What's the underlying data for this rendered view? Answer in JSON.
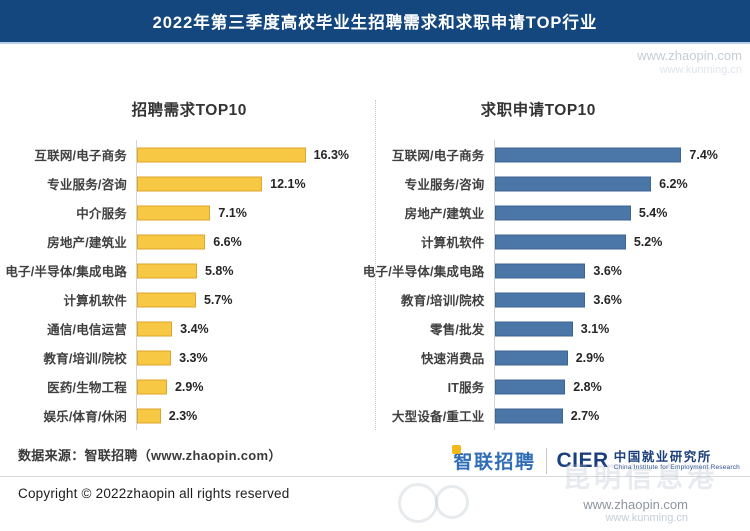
{
  "banner": {
    "title": "2022年第三季度高校毕业生招聘需求和求职申请TOP行业"
  },
  "chart_data": [
    {
      "type": "bar",
      "orientation": "horizontal",
      "title": "招聘需求TOP10",
      "categories": [
        "互联网/电子商务",
        "专业服务/咨询",
        "中介服务",
        "房地产/建筑业",
        "电子/半导体/集成电路",
        "计算机软件",
        "通信/电信运营",
        "教育/培训/院校",
        "医药/生物工程",
        "娱乐/体育/休闲"
      ],
      "values": [
        16.3,
        12.1,
        7.1,
        6.6,
        5.8,
        5.7,
        3.4,
        3.3,
        2.9,
        2.3
      ],
      "value_suffix": "%",
      "xlim": [
        0,
        17.5
      ],
      "grid": false,
      "legend": "none",
      "bar_color": "#F7C843",
      "bar_border": "#DFA32E"
    },
    {
      "type": "bar",
      "orientation": "horizontal",
      "title": "求职申请TOP10",
      "categories": [
        "互联网/电子商务",
        "专业服务/咨询",
        "房地产/建筑业",
        "计算机软件",
        "电子/半导体/集成电路",
        "教育/培训/院校",
        "零售/批发",
        "快速消费品",
        "IT服务",
        "大型设备/重工业"
      ],
      "values": [
        7.4,
        6.2,
        5.4,
        5.2,
        3.6,
        3.6,
        3.1,
        2.9,
        2.8,
        2.7
      ],
      "value_suffix": "%",
      "xlim": [
        0,
        7.8
      ],
      "grid": false,
      "legend": "none",
      "bar_color": "#4A76A8",
      "bar_border": "#3D6493"
    }
  ],
  "footer": {
    "source": "数据来源：智联招聘（www.zhaopin.com）",
    "copyright": "Copyright © 2022zhaopin all rights reserved"
  },
  "logos": {
    "zhaopin_text": "智联招聘",
    "cier_abbr": "CIER",
    "cier_cn": "中国就业研究所",
    "cier_en": "China Institute for Employment Research"
  },
  "watermarks": {
    "top_url1": "www.zhaopin.com",
    "top_url2": "www.kunming.cn",
    "bottom_big": "昆明信息港",
    "bottom_url1": "www.zhaopin.com",
    "bottom_url2": "www.kunming.cn"
  },
  "colors": {
    "banner_bg": "#14477E",
    "left_bar": "#F7C843",
    "left_bar_border": "#DFA32E",
    "right_bar": "#4A76A8",
    "right_bar_border": "#3D6493"
  }
}
